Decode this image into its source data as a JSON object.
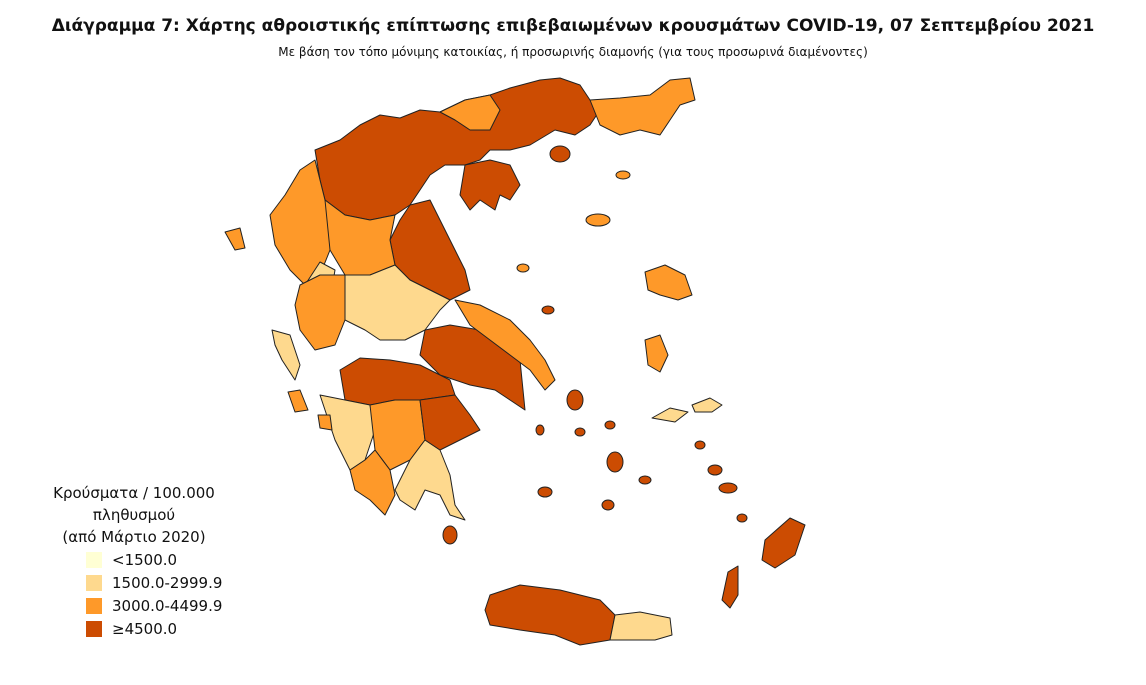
{
  "title": "Διάγραμμα 7: Χάρτης αθροιστικής επίπτωσης επιβεβαιωμένων κρουσμάτων COVID-19, 07 Σεπτεμβρίου 2021",
  "subtitle": "Με βάση τον τόπο μόνιμης κατοικίας, ή προσωρινής διαμονής (για τους προσωρινά διαμένοντες)",
  "legend": {
    "title": [
      "Κρούσματα / 100.000 πληθυσμού",
      "(από Μάρτιο 2020)"
    ],
    "items": [
      {
        "label": "<1500.0",
        "color": "#ffffd4"
      },
      {
        "label": "1500.0-2999.9",
        "color": "#fed98e"
      },
      {
        "label": "3000.0-4499.9",
        "color": "#fe9929"
      },
      {
        "label": "≥4500.0",
        "color": "#cc4c02"
      }
    ]
  }
}
